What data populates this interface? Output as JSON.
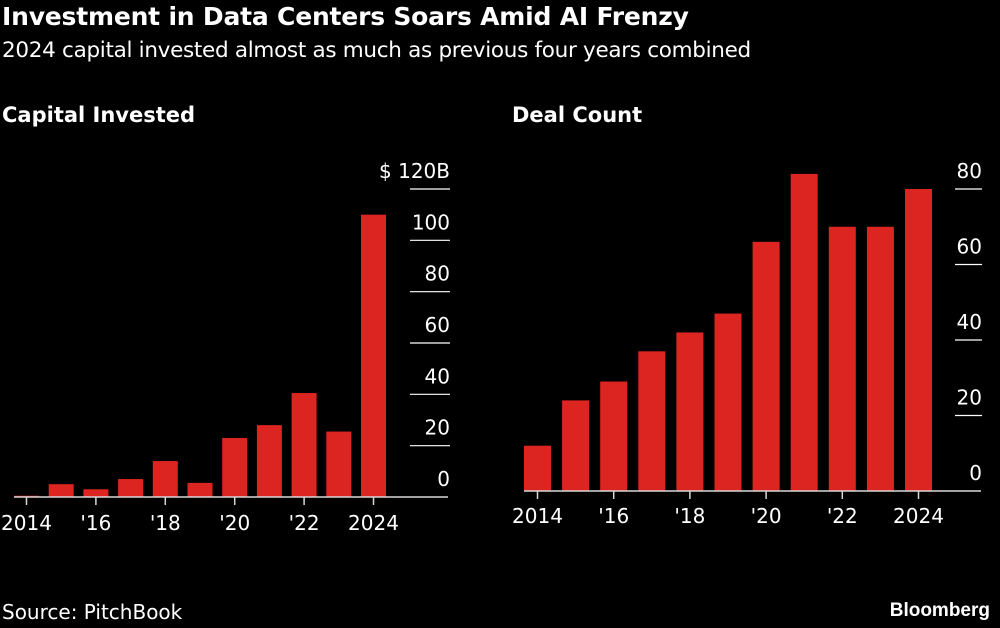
{
  "header": {
    "title": "Investment in Data Centers Soars Amid AI Frenzy",
    "subtitle": "2024 capital invested almost as much as previous four years combined"
  },
  "footer": {
    "source": "Source: PitchBook",
    "brand": "Bloomberg"
  },
  "colors": {
    "bar": "#dc2420",
    "background": "#000000",
    "text": "#ffffff",
    "grid": "#ffffff"
  },
  "chart_data": [
    {
      "type": "bar",
      "title": "Capital Invested",
      "categories": [
        "2014",
        "2015",
        "2016",
        "2017",
        "2018",
        "2019",
        "2020",
        "2021",
        "2022",
        "2023",
        "2024"
      ],
      "values": [
        0.5,
        5,
        3,
        7,
        14,
        5.5,
        23,
        28,
        40.5,
        25.5,
        110
      ],
      "ylabel": "$B",
      "ylim": [
        0,
        120
      ],
      "yticks": [
        0,
        20,
        40,
        60,
        80,
        100,
        120
      ],
      "ytick_labels": [
        "0",
        "20",
        "40",
        "60",
        "80",
        "100",
        "$ 120B"
      ],
      "xtick_labels": [
        {
          "at": "2014",
          "label": "2014"
        },
        {
          "at": "2016",
          "label": "'16"
        },
        {
          "at": "2018",
          "label": "'18"
        },
        {
          "at": "2020",
          "label": "'20"
        },
        {
          "at": "2022",
          "label": "'22"
        },
        {
          "at": "2024",
          "label": "2024"
        }
      ],
      "grid": true,
      "axis_side": "right"
    },
    {
      "type": "bar",
      "title": "Deal Count",
      "categories": [
        "2014",
        "2015",
        "2016",
        "2017",
        "2018",
        "2019",
        "2020",
        "2021",
        "2022",
        "2023",
        "2024"
      ],
      "values": [
        12,
        24,
        29,
        37,
        42,
        47,
        66,
        84,
        70,
        70,
        80
      ],
      "ylabel": "",
      "ylim": [
        0,
        80
      ],
      "yticks": [
        0,
        20,
        40,
        60,
        80
      ],
      "ytick_labels": [
        "0",
        "20",
        "40",
        "60",
        "80"
      ],
      "xtick_labels": [
        {
          "at": "2014",
          "label": "2014"
        },
        {
          "at": "2016",
          "label": "'16"
        },
        {
          "at": "2018",
          "label": "'18"
        },
        {
          "at": "2020",
          "label": "'20"
        },
        {
          "at": "2022",
          "label": "'22"
        },
        {
          "at": "2024",
          "label": "2024"
        }
      ],
      "grid": true,
      "axis_side": "right"
    }
  ]
}
